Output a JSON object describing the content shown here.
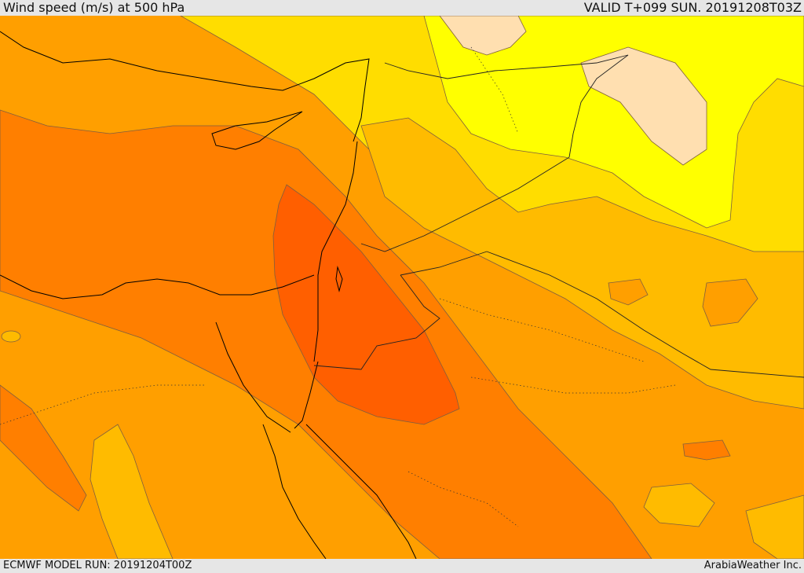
{
  "header": {
    "title": "Wind speed (m/s) at 500 hPa",
    "valid_time": "VALID T+099 SUN. 20191208T03Z"
  },
  "footer": {
    "model_run": "ECMWF MODEL RUN: 20191204T00Z",
    "credit": "ArabiaWeather Inc."
  },
  "colors": {
    "band_light_yellow": "#ffffa0",
    "band_yellow": "#ffff00",
    "band_gold": "#ffdd00",
    "band_amber": "#ffbb00",
    "band_orange": "#ff9f00",
    "band_deep_orange": "#ff7f00",
    "band_red_orange": "#ff5f00",
    "peach": "#ffdfb0",
    "coastline": "#000000",
    "contour": "#7f5f3f"
  }
}
